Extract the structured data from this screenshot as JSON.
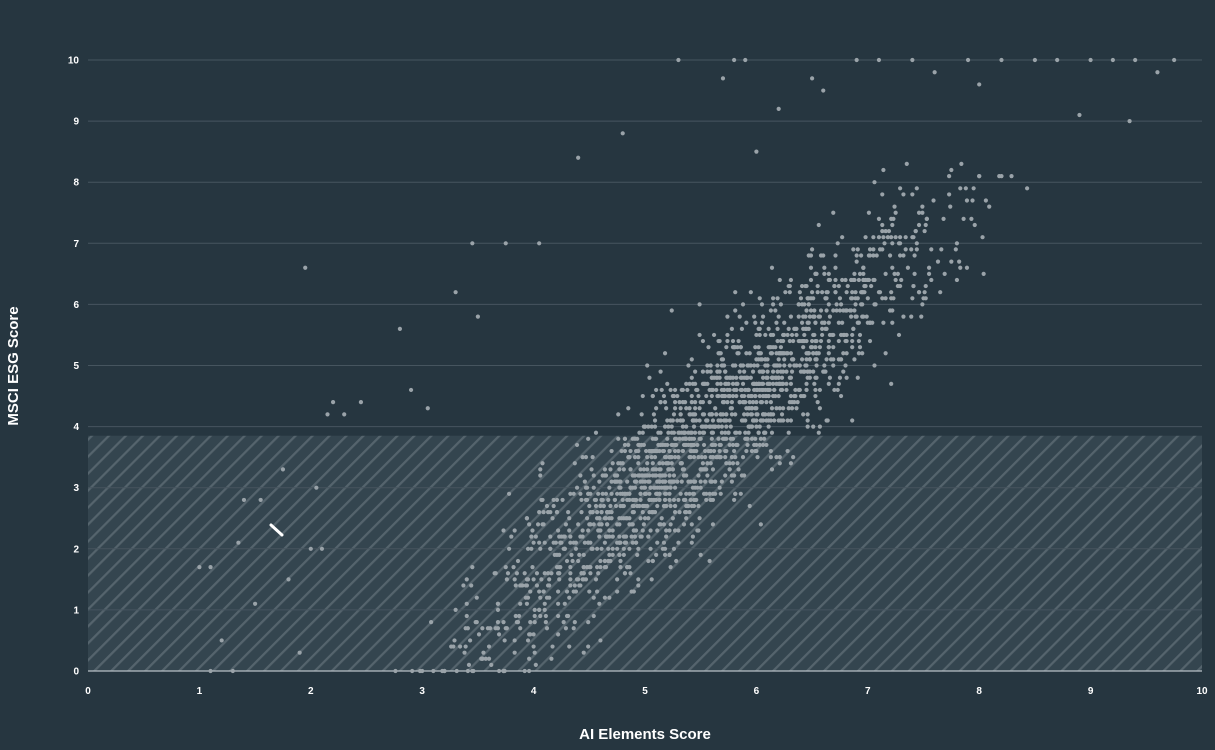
{
  "colors": {
    "background": "#263640",
    "gridline": "#46555f",
    "point": "#9aa3a9",
    "hatch_fill": "#34454f",
    "hatch_stroke": "#55646d",
    "baseline": "#b8c0c5",
    "text": "#ffffff",
    "cursor": "#ffffff"
  },
  "chart_data": {
    "type": "scatter",
    "xlabel": "AI Elements Score",
    "ylabel": "MSCI ESG Score",
    "xlim": [
      0,
      10
    ],
    "ylim": [
      0,
      10
    ],
    "x_ticks": [
      "0",
      "1",
      "2",
      "3",
      "4",
      "5",
      "6",
      "7",
      "8",
      "9",
      "10"
    ],
    "y_ticks": [
      "0",
      "1",
      "2",
      "3",
      "4",
      "5",
      "6",
      "7",
      "8",
      "9",
      "10"
    ],
    "grid": "horizontal",
    "legend": "none",
    "hatched_region": {
      "x_range": [
        0,
        10
      ],
      "y_range": [
        0,
        3.85
      ]
    },
    "generated_cloud": {
      "count": 1900,
      "spread": 0.62,
      "x_range": [
        1.4,
        9.5
      ]
    },
    "points": [
      [
        1.0,
        1.7
      ],
      [
        1.1,
        1.7
      ],
      [
        1.1,
        0.0
      ],
      [
        1.2,
        0.5
      ],
      [
        1.3,
        0.0
      ],
      [
        1.35,
        2.1
      ],
      [
        1.4,
        2.8
      ],
      [
        1.5,
        1.1
      ],
      [
        1.55,
        2.8
      ],
      [
        1.75,
        3.3
      ],
      [
        1.8,
        1.5
      ],
      [
        1.9,
        0.3
      ],
      [
        1.95,
        6.6
      ],
      [
        2.0,
        2.0
      ],
      [
        2.05,
        3.0
      ],
      [
        2.1,
        2.0
      ],
      [
        2.15,
        4.2
      ],
      [
        2.2,
        4.4
      ],
      [
        2.3,
        4.2
      ],
      [
        2.45,
        4.4
      ],
      [
        2.8,
        5.6
      ],
      [
        2.9,
        4.6
      ],
      [
        3.05,
        4.3
      ],
      [
        3.3,
        6.2
      ],
      [
        3.45,
        7.0
      ],
      [
        3.5,
        5.8
      ],
      [
        3.75,
        7.0
      ],
      [
        4.05,
        7.0
      ],
      [
        4.4,
        8.4
      ],
      [
        4.8,
        8.8
      ],
      [
        5.3,
        10.0
      ],
      [
        5.7,
        9.7
      ],
      [
        5.8,
        10.0
      ],
      [
        5.9,
        10.0
      ],
      [
        6.0,
        8.5
      ],
      [
        6.2,
        9.2
      ],
      [
        6.5,
        9.7
      ],
      [
        6.6,
        9.5
      ],
      [
        6.9,
        10.0
      ],
      [
        7.1,
        10.0
      ],
      [
        7.4,
        10.0
      ],
      [
        7.6,
        9.8
      ],
      [
        7.9,
        10.0
      ],
      [
        8.0,
        9.6
      ],
      [
        8.2,
        10.0
      ],
      [
        8.5,
        10.0
      ],
      [
        8.7,
        10.0
      ],
      [
        8.9,
        9.1
      ],
      [
        9.0,
        10.0
      ],
      [
        9.2,
        10.0
      ],
      [
        9.35,
        9.0
      ],
      [
        9.4,
        10.0
      ],
      [
        9.6,
        9.8
      ],
      [
        9.75,
        10.0
      ]
    ]
  }
}
